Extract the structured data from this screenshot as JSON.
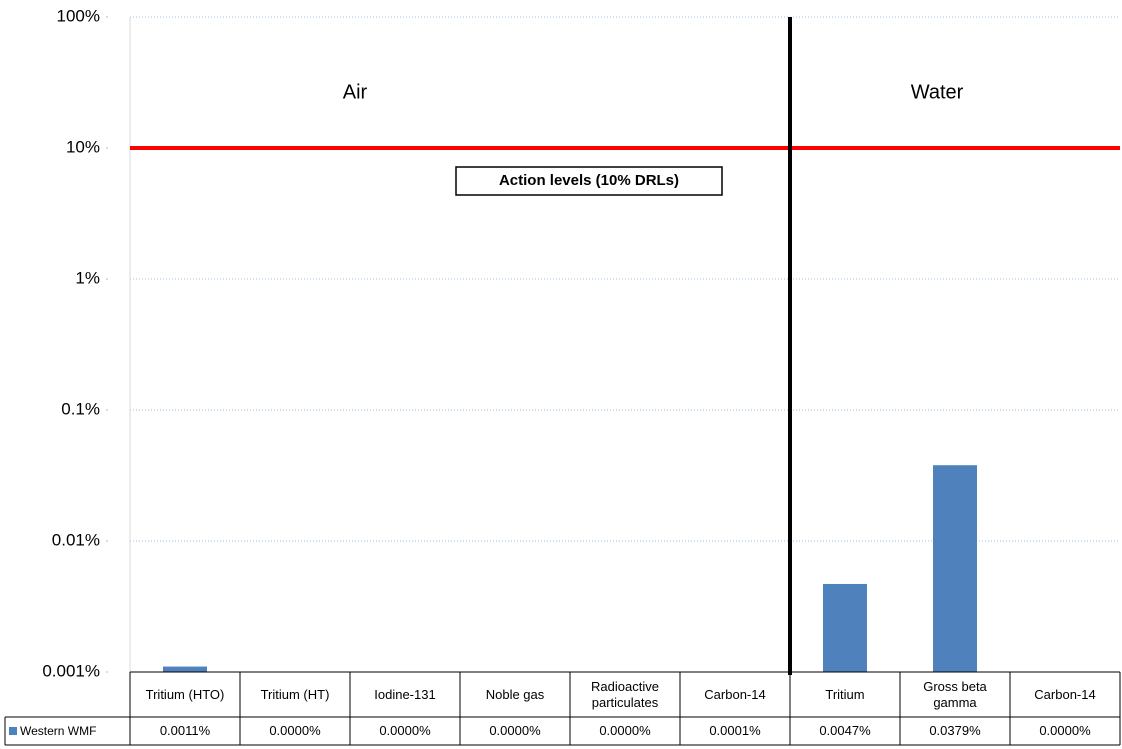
{
  "chart_data": {
    "type": "bar",
    "log_scale": true,
    "grid": true,
    "categories": [
      "Tritium (HTO)",
      "Tritium (HT)",
      "Iodine-131",
      "Noble gas",
      "Radioactive particulates",
      "Carbon-14",
      "Tritium",
      "Gross beta gamma",
      "Carbon-14"
    ],
    "series": [
      {
        "name": "Western WMF",
        "color": "#4f81bd",
        "values": [
          0.0011,
          0,
          0,
          0,
          0,
          0.0001,
          0.0047,
          0.0379,
          0
        ],
        "value_labels": [
          "0.0011%",
          "0.0000%",
          "0.0000%",
          "0.0000%",
          "0.0000%",
          "0.0001%",
          "0.0047%",
          "0.0379%",
          "0.0000%"
        ]
      }
    ],
    "ylim": [
      0.001,
      100
    ],
    "yticks": [
      {
        "value": 0.001,
        "label": "0.001%"
      },
      {
        "value": 0.01,
        "label": "0.01%"
      },
      {
        "value": 0.1,
        "label": "0.1%"
      },
      {
        "value": 1,
        "label": "1%"
      },
      {
        "value": 10,
        "label": "10%"
      },
      {
        "value": 100,
        "label": "100%"
      }
    ],
    "groups": [
      {
        "label": "Air",
        "size": 6
      },
      {
        "label": "Water",
        "size": 3
      }
    ],
    "reference_lines": [
      {
        "value": 10,
        "color": "#ff0000",
        "label": "Action levels (10% DRLs)"
      }
    ]
  }
}
